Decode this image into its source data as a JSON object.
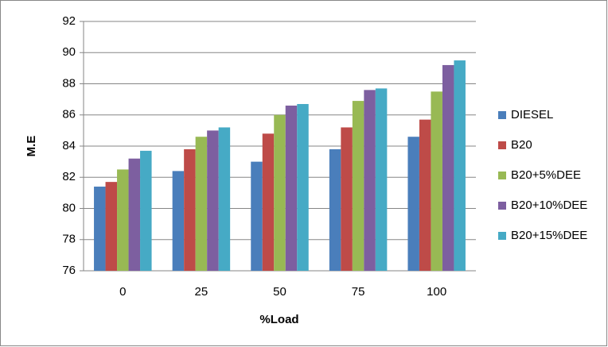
{
  "chart_data": {
    "type": "bar",
    "y_label": "M.E",
    "x_label": "%Load",
    "categories": [
      "0",
      "25",
      "50",
      "75",
      "100"
    ],
    "series": [
      {
        "name": "DIESEL",
        "color": "#4a7ebb",
        "values": [
          81.4,
          82.4,
          83.0,
          83.8,
          84.6
        ]
      },
      {
        "name": "B20",
        "color": "#be4b48",
        "values": [
          81.7,
          83.8,
          84.8,
          85.2,
          85.7
        ]
      },
      {
        "name": "B20+5%DEE",
        "color": "#98b954",
        "values": [
          82.5,
          84.6,
          86.0,
          86.9,
          87.5
        ]
      },
      {
        "name": "B20+10%DEE",
        "color": "#7d5fa0",
        "values": [
          83.2,
          85.0,
          86.6,
          87.6,
          89.2
        ]
      },
      {
        "name": "B20+15%DEE",
        "color": "#46aac5",
        "values": [
          83.7,
          85.2,
          86.7,
          87.7,
          89.5
        ]
      }
    ],
    "ylim": [
      76,
      92
    ],
    "yticks": [
      76,
      78,
      80,
      82,
      84,
      86,
      88,
      90,
      92
    ],
    "grid": true
  }
}
